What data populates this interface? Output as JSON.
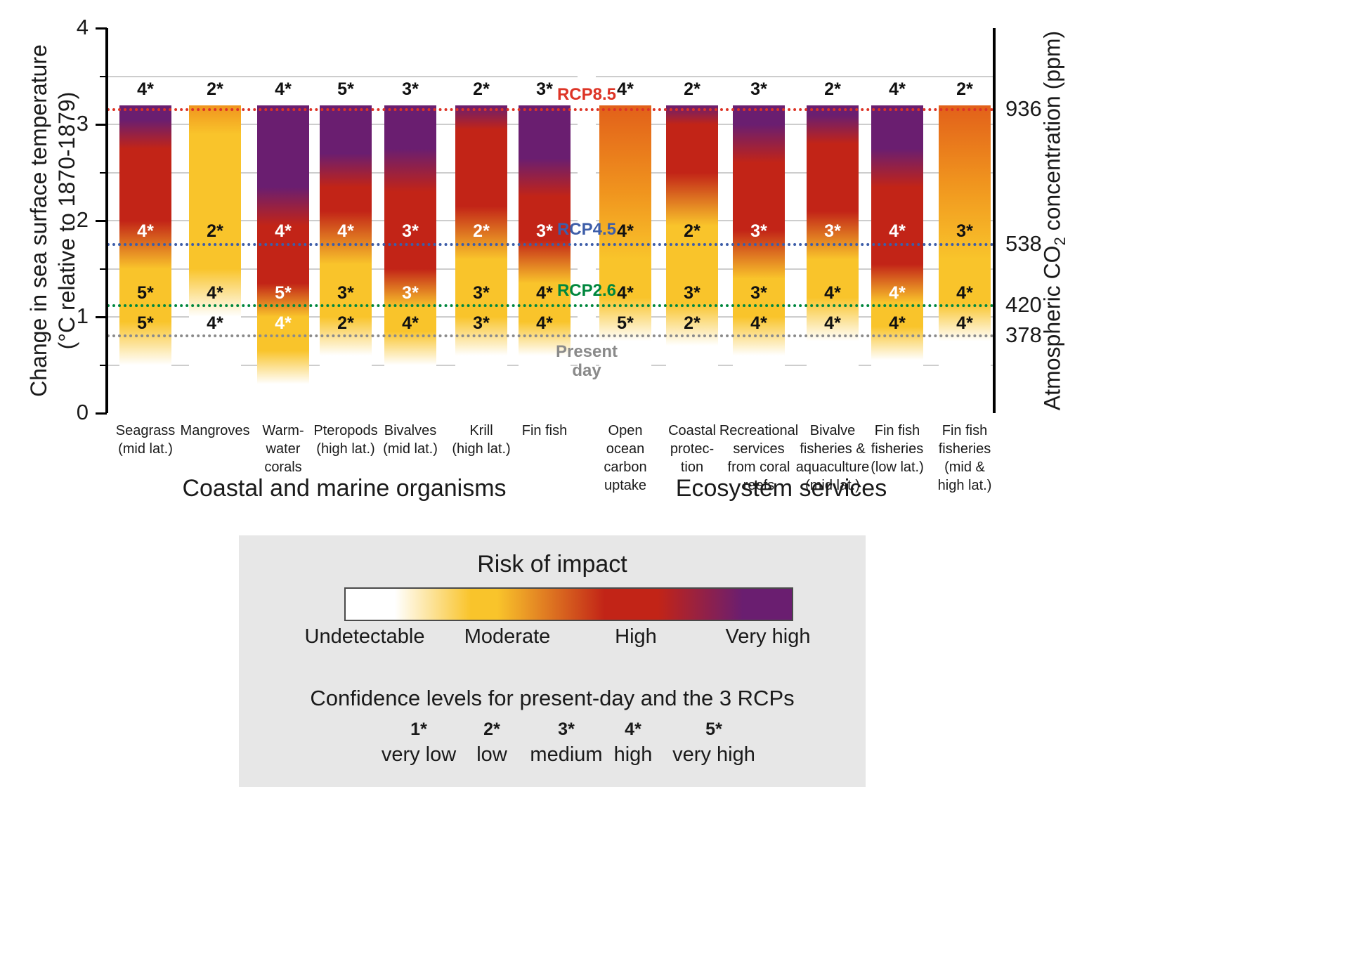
{
  "axes": {
    "left_title_line1": "Change in sea surface temperature",
    "left_title_line2": "(°C  relative to 1870-1879)",
    "right_title_pre": "Atmospheric CO",
    "right_title_sub": "2",
    "right_title_post": " concentration (ppm)",
    "left_ticks": [
      {
        "v": 0,
        "label": "0"
      },
      {
        "v": 1,
        "label": "1"
      },
      {
        "v": 2,
        "label": "2"
      },
      {
        "v": 3,
        "label": "3"
      },
      {
        "v": 4,
        "label": "4"
      }
    ]
  },
  "chart_data": {
    "type": "bar",
    "ylim": [
      0,
      4
    ],
    "ylabel": "Change in sea surface temperature (°C relative to 1870-1879)",
    "y2label": "Atmospheric CO2 concentration (ppm)",
    "bar_top_c": 3.2,
    "grid": true,
    "groups": [
      "Coastal and marine organisms",
      "Ecosystem services"
    ],
    "rcp_lines": [
      {
        "label": "RCP8.5",
        "temp_c": 3.15,
        "ppm": "936",
        "color": "#DD3426"
      },
      {
        "label": "RCP4.5",
        "temp_c": 1.75,
        "ppm": "538",
        "color": "#3E5EA9"
      },
      {
        "label": "RCP2.6",
        "temp_c": 1.12,
        "ppm": "420",
        "color": "#00873E"
      },
      {
        "label": "Present day",
        "temp_c": 0.8,
        "ppm": "378",
        "color": "#8A8A8A",
        "label_lines": [
          "Present",
          "day"
        ]
      }
    ],
    "risk_colors": {
      "w": "#FFFFFF",
      "y": "#F9C42B",
      "r": "#C22417",
      "p": "#6A1E70",
      "o": "#F0941E",
      "or": "#E2601A"
    },
    "label_rows_c": [
      3.36,
      1.88,
      1.24,
      0.93
    ],
    "series": [
      {
        "name_lines": [
          "Seagrass",
          "(mid lat.)"
        ],
        "group": 0,
        "gradient": [
          [
            0,
            "w"
          ],
          [
            0.5,
            "w"
          ],
          [
            0.95,
            "y"
          ],
          [
            1.5,
            "y"
          ],
          [
            2.0,
            "r"
          ],
          [
            2.75,
            "r"
          ],
          [
            3.05,
            "p"
          ],
          [
            3.2,
            "p"
          ]
        ],
        "confidence": [
          {
            "t": "4*",
            "white": false
          },
          {
            "t": "4*",
            "white": true
          },
          {
            "t": "5*",
            "white": false
          },
          {
            "t": "5*",
            "white": false
          }
        ]
      },
      {
        "name_lines": [
          "Mangroves"
        ],
        "group": 0,
        "gradient": [
          [
            0,
            "w"
          ],
          [
            1.0,
            "w"
          ],
          [
            1.5,
            "y"
          ],
          [
            2.9,
            "y"
          ],
          [
            3.2,
            "o"
          ]
        ],
        "confidence": [
          {
            "t": "2*",
            "white": false
          },
          {
            "t": "2*",
            "white": false
          },
          {
            "t": "4*",
            "white": false
          },
          {
            "t": "4*",
            "white": false
          }
        ]
      },
      {
        "name_lines": [
          "Warm-",
          "water",
          "corals"
        ],
        "group": 0,
        "gradient": [
          [
            0,
            "w"
          ],
          [
            0.3,
            "w"
          ],
          [
            0.65,
            "y"
          ],
          [
            1.0,
            "y"
          ],
          [
            1.35,
            "r"
          ],
          [
            1.95,
            "r"
          ],
          [
            2.35,
            "p"
          ],
          [
            3.2,
            "p"
          ]
        ],
        "confidence": [
          {
            "t": "4*",
            "white": false
          },
          {
            "t": "4*",
            "white": true
          },
          {
            "t": "5*",
            "white": true
          },
          {
            "t": "4*",
            "white": true
          }
        ]
      },
      {
        "name_lines": [
          "Pteropods",
          "(high lat.)"
        ],
        "group": 0,
        "gradient": [
          [
            0,
            "w"
          ],
          [
            0.6,
            "w"
          ],
          [
            1.0,
            "y"
          ],
          [
            1.55,
            "y"
          ],
          [
            2.1,
            "r"
          ],
          [
            2.35,
            "r"
          ],
          [
            2.7,
            "p"
          ],
          [
            3.2,
            "p"
          ]
        ],
        "confidence": [
          {
            "t": "5*",
            "white": false
          },
          {
            "t": "4*",
            "white": true
          },
          {
            "t": "3*",
            "white": false
          },
          {
            "t": "2*",
            "white": false
          }
        ]
      },
      {
        "name_lines": [
          "Bivalves",
          "(mid lat.)"
        ],
        "group": 0,
        "gradient": [
          [
            0,
            "w"
          ],
          [
            0.5,
            "w"
          ],
          [
            0.85,
            "y"
          ],
          [
            1.1,
            "y"
          ],
          [
            1.5,
            "r"
          ],
          [
            2.3,
            "r"
          ],
          [
            2.75,
            "p"
          ],
          [
            3.2,
            "p"
          ]
        ],
        "confidence": [
          {
            "t": "3*",
            "white": false
          },
          {
            "t": "3*",
            "white": true
          },
          {
            "t": "3*",
            "white": true
          },
          {
            "t": "4*",
            "white": false
          }
        ]
      },
      {
        "name_lines": [
          "Krill",
          "(high lat.)"
        ],
        "group": 0,
        "gradient": [
          [
            0,
            "w"
          ],
          [
            0.6,
            "w"
          ],
          [
            1.0,
            "y"
          ],
          [
            1.6,
            "y"
          ],
          [
            2.15,
            "r"
          ],
          [
            2.95,
            "r"
          ],
          [
            3.2,
            "p"
          ]
        ],
        "confidence": [
          {
            "t": "2*",
            "white": false
          },
          {
            "t": "2*",
            "white": true
          },
          {
            "t": "3*",
            "white": false
          },
          {
            "t": "3*",
            "white": false
          }
        ]
      },
      {
        "name_lines": [
          "Fin fish"
        ],
        "group": 0,
        "gradient": [
          [
            0,
            "w"
          ],
          [
            0.6,
            "w"
          ],
          [
            0.95,
            "y"
          ],
          [
            1.35,
            "y"
          ],
          [
            1.8,
            "r"
          ],
          [
            2.25,
            "r"
          ],
          [
            2.65,
            "p"
          ],
          [
            3.2,
            "p"
          ]
        ],
        "confidence": [
          {
            "t": "3*",
            "white": false
          },
          {
            "t": "3*",
            "white": true
          },
          {
            "t": "4*",
            "white": false
          },
          {
            "t": "4*",
            "white": false
          }
        ]
      },
      {
        "name_lines": [
          "Open",
          "ocean",
          "carbon",
          "uptake"
        ],
        "group": 1,
        "gradient": [
          [
            0,
            "w"
          ],
          [
            0.75,
            "w"
          ],
          [
            1.2,
            "y"
          ],
          [
            1.6,
            "y"
          ],
          [
            2.3,
            "o"
          ],
          [
            3.2,
            "or"
          ]
        ],
        "confidence": [
          {
            "t": "4*",
            "white": false
          },
          {
            "t": "4*",
            "white": false
          },
          {
            "t": "4*",
            "white": false
          },
          {
            "t": "5*",
            "white": false
          }
        ]
      },
      {
        "name_lines": [
          "Coastal",
          "protec-",
          "tion"
        ],
        "group": 1,
        "gradient": [
          [
            0,
            "w"
          ],
          [
            0.7,
            "w"
          ],
          [
            1.15,
            "y"
          ],
          [
            1.95,
            "y"
          ],
          [
            2.5,
            "r"
          ],
          [
            3.0,
            "r"
          ],
          [
            3.2,
            "p"
          ]
        ],
        "confidence": [
          {
            "t": "2*",
            "white": false
          },
          {
            "t": "2*",
            "white": false
          },
          {
            "t": "3*",
            "white": false
          },
          {
            "t": "2*",
            "white": false
          }
        ]
      },
      {
        "name_lines": [
          "Recreational",
          "services",
          "from coral",
          "reefs"
        ],
        "group": 1,
        "gradient": [
          [
            0,
            "w"
          ],
          [
            0.6,
            "w"
          ],
          [
            1.0,
            "y"
          ],
          [
            1.4,
            "y"
          ],
          [
            1.9,
            "r"
          ],
          [
            2.6,
            "r"
          ],
          [
            3.0,
            "p"
          ],
          [
            3.2,
            "p"
          ]
        ],
        "confidence": [
          {
            "t": "3*",
            "white": false
          },
          {
            "t": "3*",
            "white": true
          },
          {
            "t": "3*",
            "white": false
          },
          {
            "t": "4*",
            "white": false
          }
        ]
      },
      {
        "name_lines": [
          "Bivalve",
          "fisheries &",
          "aquaculture",
          "(mid lat.)"
        ],
        "group": 1,
        "gradient": [
          [
            0,
            "w"
          ],
          [
            0.75,
            "w"
          ],
          [
            1.2,
            "y"
          ],
          [
            1.6,
            "y"
          ],
          [
            2.1,
            "r"
          ],
          [
            2.8,
            "r"
          ],
          [
            3.1,
            "p"
          ],
          [
            3.2,
            "p"
          ]
        ],
        "confidence": [
          {
            "t": "2*",
            "white": false
          },
          {
            "t": "3*",
            "white": true
          },
          {
            "t": "4*",
            "white": false
          },
          {
            "t": "4*",
            "white": false
          }
        ]
      },
      {
        "name_lines": [
          "Fin fish",
          "fisheries",
          "(low lat.)"
        ],
        "group": 1,
        "gradient": [
          [
            0,
            "w"
          ],
          [
            0.55,
            "w"
          ],
          [
            0.9,
            "y"
          ],
          [
            1.15,
            "y"
          ],
          [
            1.55,
            "r"
          ],
          [
            2.35,
            "r"
          ],
          [
            2.75,
            "p"
          ],
          [
            3.2,
            "p"
          ]
        ],
        "confidence": [
          {
            "t": "4*",
            "white": false
          },
          {
            "t": "4*",
            "white": true
          },
          {
            "t": "4*",
            "white": true
          },
          {
            "t": "4*",
            "white": false
          }
        ]
      },
      {
        "name_lines": [
          "Fin fish",
          "fisheries",
          "(mid &",
          "high lat.)"
        ],
        "group": 1,
        "gradient": [
          [
            0,
            "w"
          ],
          [
            0.75,
            "w"
          ],
          [
            1.15,
            "y"
          ],
          [
            1.6,
            "y"
          ],
          [
            2.4,
            "o"
          ],
          [
            3.2,
            "or"
          ]
        ],
        "confidence": [
          {
            "t": "2*",
            "white": false
          },
          {
            "t": "3*",
            "white": false
          },
          {
            "t": "4*",
            "white": false
          },
          {
            "t": "4*",
            "white": false
          }
        ]
      }
    ]
  },
  "legend": {
    "title": "Risk of impact",
    "labels": [
      "Undetectable",
      "Moderate",
      "High",
      "Very high"
    ]
  },
  "confidence": {
    "title": "Confidence levels for present-day and the 3 RCPs",
    "items": [
      {
        "code": "1*",
        "label": "very low"
      },
      {
        "code": "2*",
        "label": "low"
      },
      {
        "code": "3*",
        "label": "medium"
      },
      {
        "code": "4*",
        "label": "high"
      },
      {
        "code": "5*",
        "label": "very high"
      }
    ]
  }
}
